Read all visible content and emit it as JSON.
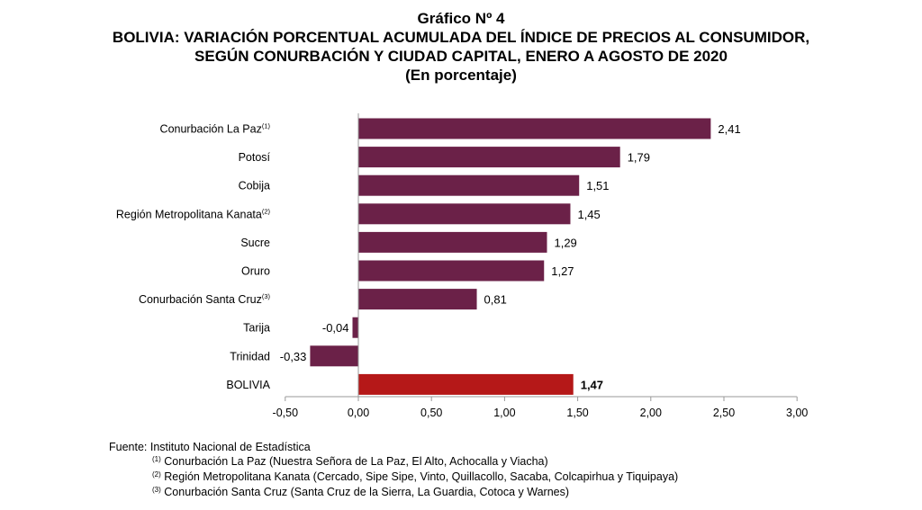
{
  "titles": {
    "heading": "Gráfico Nº 4",
    "line1": "BOLIVIA: VARIACIÓN PORCENTUAL ACUMULADA DEL ÍNDICE DE PRECIOS AL CONSUMIDOR,",
    "line2": "SEGÚN CONURBACIÓN Y CIUDAD CAPITAL, ENERO A AGOSTO DE 2020",
    "line3": "(En porcentaje)"
  },
  "chart_data": {
    "type": "bar",
    "orientation": "horizontal",
    "categories": [
      "Conurbación La Paz",
      "Potosí",
      "Cobija",
      "Región Metropolitana Kanata",
      "Sucre",
      "Oruro",
      "Conurbación Santa Cruz",
      "Tarija",
      "Trinidad",
      "BOLIVIA"
    ],
    "category_superscripts": [
      "(1)",
      "",
      "",
      "(2)",
      "",
      "",
      "(3)",
      "",
      "",
      ""
    ],
    "values": [
      2.41,
      1.79,
      1.51,
      1.45,
      1.29,
      1.27,
      0.81,
      -0.04,
      -0.33,
      1.47
    ],
    "value_labels": [
      "2,41",
      "1,79",
      "1,51",
      "1,45",
      "1,29",
      "1,27",
      "0,81",
      "-0,04",
      "-0,33",
      "1,47"
    ],
    "highlight_index": 9,
    "colors": {
      "bar": "#6b2148",
      "highlight": "#b51818",
      "axis": "#999999"
    },
    "xlim": [
      -0.5,
      3.0
    ],
    "xticks": [
      -0.5,
      0.0,
      0.5,
      1.0,
      1.5,
      2.0,
      2.5,
      3.0
    ],
    "xtick_labels": [
      "-0,50",
      "0,00",
      "0,50",
      "1,00",
      "1,50",
      "2,00",
      "2,50",
      "3,00"
    ],
    "grid": false,
    "legend": "none"
  },
  "notes": {
    "source": "Fuente: Instituto Nacional de Estadística",
    "note1_mark": "(1)",
    "note1": "Conurbación La Paz (Nuestra Señora de La Paz, El Alto, Achocalla y Viacha)",
    "note2_mark": "(2)",
    "note2": "Región Metropolitana Kanata (Cercado, Sipe Sipe, Vinto, Quillacollo, Sacaba, Colcapirhua y Tiquipaya)",
    "note3_mark": "(3)",
    "note3": "Conurbación Santa Cruz (Santa Cruz de la Sierra, La Guardia, Cotoca y Warnes)"
  }
}
